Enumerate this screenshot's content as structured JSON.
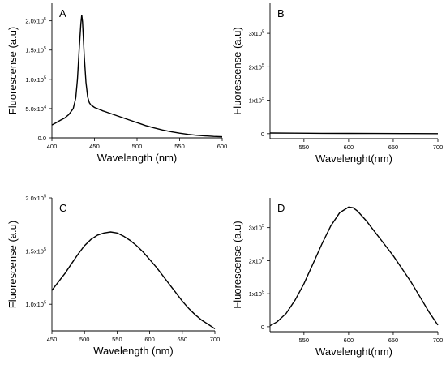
{
  "chart_data": [
    {
      "panel": "A",
      "type": "line",
      "xlabel": "Wavelength (nm)",
      "ylabel": "Fluorescense (a.u)",
      "xlim": [
        400,
        600
      ],
      "ylim": [
        0,
        230000
      ],
      "xticks": [
        400,
        450,
        500,
        550,
        600
      ],
      "xtick_labels": [
        "400",
        "450",
        "500",
        "550",
        "600"
      ],
      "yticks": [
        0,
        50000,
        100000,
        150000,
        200000
      ],
      "ytick_labels": [
        "0.0",
        "5.0x10^4",
        "1.0x10^5",
        "1.5x10^5",
        "2.0x10^5"
      ],
      "series": [
        {
          "x": [
            400,
            405,
            410,
            415,
            420,
            425,
            428,
            430,
            432,
            434,
            435,
            436,
            437,
            438,
            440,
            442,
            444,
            446,
            448,
            450,
            455,
            460,
            470,
            480,
            490,
            500,
            510,
            520,
            530,
            540,
            550,
            560,
            570,
            580,
            590,
            600
          ],
          "y": [
            22000,
            26000,
            30000,
            34000,
            40000,
            50000,
            68000,
            100000,
            150000,
            195000,
            210000,
            198000,
            170000,
            140000,
            95000,
            70000,
            60000,
            56000,
            54000,
            52000,
            49000,
            46000,
            41000,
            36000,
            31000,
            26000,
            21000,
            17000,
            13500,
            10500,
            8000,
            6000,
            4500,
            3500,
            2500,
            2000
          ]
        }
      ]
    },
    {
      "panel": "B",
      "type": "line",
      "xlabel": "Wavelenght(nm)",
      "ylabel": "Fluorescense (a.u)",
      "xlim": [
        512,
        700
      ],
      "ylim": [
        -15000,
        390000
      ],
      "xticks": [
        550,
        600,
        650,
        700
      ],
      "xtick_labels": [
        "550",
        "600",
        "650",
        "700"
      ],
      "yticks": [
        0,
        100000,
        200000,
        300000
      ],
      "ytick_labels": [
        "0",
        "1x10^5",
        "2x10^5",
        "3x10^5"
      ],
      "series": [
        {
          "x": [
            512,
            540,
            570,
            600,
            630,
            660,
            700
          ],
          "y": [
            2000,
            1500,
            1000,
            800,
            500,
            300,
            0
          ]
        }
      ]
    },
    {
      "panel": "C",
      "type": "line",
      "xlabel": "Wavelength (nm)",
      "ylabel": "Fluorescense (a.u)",
      "xlim": [
        450,
        700
      ],
      "ylim": [
        75000,
        200000
      ],
      "xticks": [
        450,
        500,
        550,
        600,
        650,
        700
      ],
      "xtick_labels": [
        "450",
        "500",
        "550",
        "600",
        "650",
        "700"
      ],
      "yticks": [
        100000,
        150000,
        200000
      ],
      "ytick_labels": [
        "1.0x10^5",
        "1.5x10^5",
        "2.0x10^5"
      ],
      "series": [
        {
          "x": [
            450,
            460,
            470,
            480,
            490,
            500,
            510,
            520,
            530,
            540,
            550,
            560,
            570,
            580,
            590,
            600,
            610,
            620,
            630,
            640,
            650,
            660,
            670,
            680,
            690,
            700
          ],
          "y": [
            113000,
            121000,
            129000,
            138000,
            147000,
            155000,
            161000,
            165000,
            167000,
            168000,
            167000,
            164000,
            160000,
            155000,
            149000,
            142000,
            135000,
            127000,
            119000,
            111000,
            103000,
            96000,
            90000,
            85000,
            81000,
            77000
          ]
        }
      ]
    },
    {
      "panel": "D",
      "type": "line",
      "xlabel": "Wavelenght(nm)",
      "ylabel": "Fluorescense (a.u)",
      "xlim": [
        512,
        700
      ],
      "ylim": [
        -15000,
        390000
      ],
      "xticks": [
        550,
        600,
        650,
        700
      ],
      "xtick_labels": [
        "550",
        "600",
        "650",
        "700"
      ],
      "yticks": [
        0,
        100000,
        200000,
        300000
      ],
      "ytick_labels": [
        "0",
        "1x10^5",
        "2x10^5",
        "3x10^5"
      ],
      "series": [
        {
          "x": [
            512,
            520,
            530,
            540,
            550,
            560,
            570,
            580,
            590,
            600,
            605,
            610,
            620,
            630,
            640,
            650,
            660,
            670,
            680,
            690,
            700
          ],
          "y": [
            3000,
            15000,
            40000,
            80000,
            130000,
            190000,
            250000,
            305000,
            345000,
            362000,
            360000,
            350000,
            320000,
            285000,
            250000,
            215000,
            175000,
            135000,
            90000,
            45000,
            5000
          ]
        }
      ]
    }
  ]
}
